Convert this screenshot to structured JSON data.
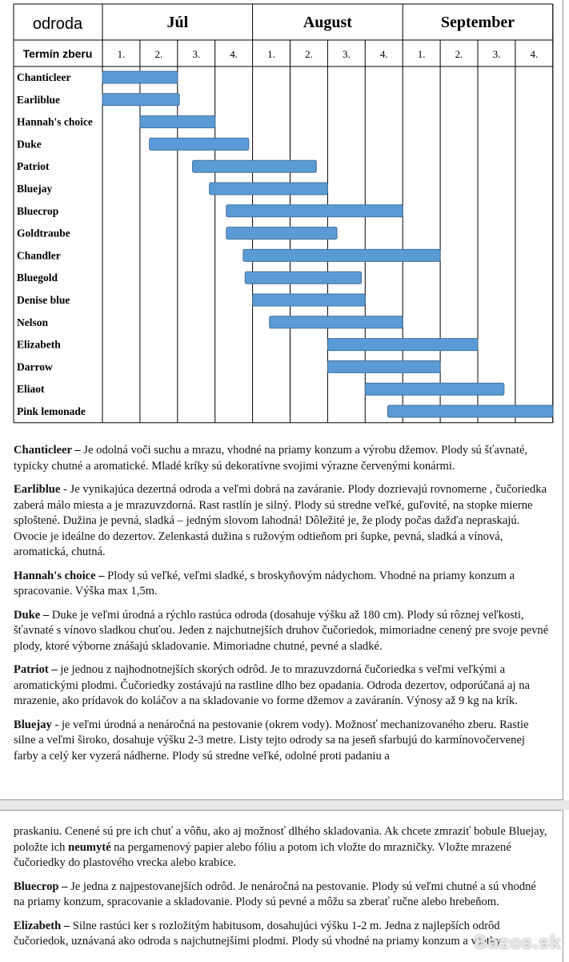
{
  "table": {
    "variety": "odroda",
    "harvest": "Termín zberu",
    "months": [
      "Júl",
      "August",
      "September"
    ],
    "weeks": [
      "1.",
      "2.",
      "3.",
      "4.",
      "1.",
      "2.",
      "3.",
      "4.",
      "1.",
      "2.",
      "3.",
      "4."
    ],
    "rows": [
      {
        "name": "Chanticleer",
        "start": 0,
        "end": 2
      },
      {
        "name": "Earliblue",
        "start": 0,
        "end": 2.05
      },
      {
        "name": "Hannah's choice",
        "start": 1,
        "end": 3
      },
      {
        "name": "Duke",
        "start": 1.25,
        "end": 3.9
      },
      {
        "name": "Patriot",
        "start": 2.4,
        "end": 5.7
      },
      {
        "name": "Bluejay",
        "start": 2.85,
        "end": 6
      },
      {
        "name": "Bluecrop",
        "start": 3.3,
        "end": 8
      },
      {
        "name": "Goldtraube",
        "start": 3.3,
        "end": 6.25
      },
      {
        "name": "Chandler",
        "start": 3.75,
        "end": 9
      },
      {
        "name": "Bluegold",
        "start": 3.8,
        "end": 6.9
      },
      {
        "name": "Denise blue",
        "start": 4,
        "end": 7
      },
      {
        "name": "Nelson",
        "start": 4.45,
        "end": 8
      },
      {
        "name": "Elizabeth",
        "start": 6,
        "end": 10
      },
      {
        "name": "Darrow",
        "start": 6,
        "end": 9
      },
      {
        "name": "Eliaot",
        "start": 7,
        "end": 10.7
      },
      {
        "name": "Pink lemonade",
        "start": 7.6,
        "end": 12
      }
    ]
  },
  "page1": {
    "paragraphs": [
      [
        {
          "text": "Chanticleer –",
          "bold": true
        },
        {
          "text": " Je odolná voči suchu a mrazu, vhodné na priamy konzum a výrobu džemov. Plody sú šťavnaté, typicky chutné a aromatické. Mladé kríky sú dekoratívne svojimi výrazne červenými konármi.",
          "bold": false
        }
      ],
      [
        {
          "text": "Earliblue",
          "bold": true
        },
        {
          "text": " -  Je vynikajúca dezertná odroda a veľmi dobrá na zaváranie. Plody dozrievajú rovnomerne , čučoriedka zaberá málo miesta a je mrazuvzdorná. Rast rastlín je silný. Plody sú stredne veľké, guľovité, na stopke mierne sploštené. Dužina je pevná, sladká – jedným slovom lahodná! Dôležité je, že plody počas dažďa nepraskajú. Ovocie je ideálne do dezertov. Zelenkastá dužina s ružovým odtieňom pri šupke, pevná, sladká a vínová, aromatická, chutná.",
          "bold": false
        }
      ],
      [
        {
          "text": "Hannah's choice –",
          "bold": true
        },
        {
          "text": " Plody sú veľké, veľmi sladké, s broskyňovým nádychom. Vhodné na priamy konzum a spracovanie. Výška max 1,5m.",
          "bold": false
        }
      ],
      [
        {
          "text": "Duke –",
          "bold": true
        },
        {
          "text": " Duke je veľmi úrodná a rýchlo rastúca odroda (dosahuje výšku až 180 cm). Plody sú rôznej veľkosti, šťavnaté s vínovo sladkou chuťou. Jeden z najchutnejších druhov čučoriedok, mimoriadne cenený pre svoje pevné plody, ktoré výborne znášajú skladovanie. Mimoriadne chutné, pevné a sladké.",
          "bold": false
        }
      ],
      [
        {
          "text": "Patriot –",
          "bold": true
        },
        {
          "text": " je jednou z najhodnotnejších skorých odrôd. Je to mrazuvzdorná čučoriedka s veľmi veľkými a aromatickými plodmi. Čučoriedky zostávajú na rastline dlho bez opadania. Odroda dezertov, odporúčaná aj na mrazenie, ako prídavok do koláčov a na skladovanie vo forme džemov a zaváranín. Výnosy až 9 kg na krík.",
          "bold": false
        }
      ],
      [
        {
          "text": "Bluejay",
          "bold": true
        },
        {
          "text": " - je veľmi úrodná a nenáročná na pestovanie (okrem vody). Možnosť mechanizovaného zberu. Rastie silne a veľmi široko, dosahuje výšku 2-3 metre. Listy tejto odrody sa na jeseň sfarbujú do karmínovočervenej farby a celý ker vyzerá nádherne. Plody sú stredne veľké, odolné proti padaniu a",
          "bold": false
        }
      ]
    ]
  },
  "page2": {
    "paragraphs": [
      [
        {
          "text": "praskaniu. Cenené sú pre ich chuť a vôňu, ako aj možnosť dlhého skladovania. Ak chcete zmraziť bobule Bluejay, položte ich ",
          "bold": false
        },
        {
          "text": "neumyté",
          "bold": true
        },
        {
          "text": " na pergamenový papier alebo fóliu a potom ich vložte do mrazničky. Vložte mrazené čučoriedky do plastového vrecka alebo krabice.",
          "bold": false
        }
      ],
      [
        {
          "text": "Bluecrop –",
          "bold": true
        },
        {
          "text": " Je jedna z najpestovanejších odrôd. Je nenáročná na pestovanie. Plody sú veľmi chutné a sú vhodné na priamy konzum, spracovanie a skladovanie. Plody sú pevné a môžu sa zberať ručne alebo hrebeňom.",
          "bold": false
        }
      ],
      [
        {
          "text": "Elizabeth –",
          "bold": true
        },
        {
          "text": " Silne rastúci ker s rozložitým habitusom, dosahujúci výšku 1-2 m. Jedna z najlepších odrôd čučoriedok, uznávaná ako odroda s najchutnejšími plodmi. Plody sú vhodné na priamy konzum a všetky",
          "bold": false
        }
      ]
    ]
  },
  "watermark": "Bazos.sk"
}
